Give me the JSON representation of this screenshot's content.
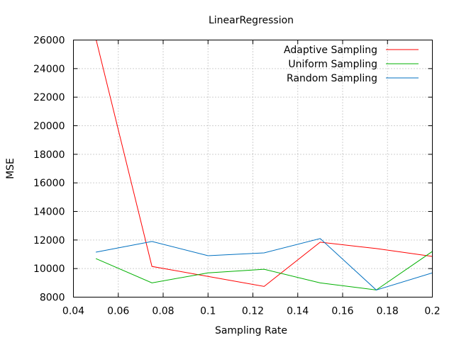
{
  "chart_data": {
    "type": "line",
    "title": "LinearRegression",
    "xlabel": "Sampling Rate",
    "ylabel": "MSE",
    "xlim": [
      0.04,
      0.2
    ],
    "ylim": [
      8000,
      26000
    ],
    "xticks": [
      0.04,
      0.06,
      0.08,
      0.1,
      0.12,
      0.14,
      0.16,
      0.18,
      0.2
    ],
    "xtick_labels": [
      "0.04",
      "0.06",
      "0.08",
      "0.1",
      "0.12",
      "0.14",
      "0.16",
      "0.18",
      "0.2"
    ],
    "yticks": [
      8000,
      10000,
      12000,
      14000,
      16000,
      18000,
      20000,
      22000,
      24000,
      26000
    ],
    "ytick_labels": [
      "8000",
      "10000",
      "12000",
      "14000",
      "16000",
      "18000",
      "20000",
      "22000",
      "24000",
      "26000"
    ],
    "grid": true,
    "legend": "top-right",
    "x": [
      0.05,
      0.075,
      0.1,
      0.125,
      0.15,
      0.175,
      0.2
    ],
    "series": [
      {
        "name": "Adaptive Sampling",
        "color": "#ff0000",
        "values": [
          26100,
          10150,
          9450,
          8750,
          11850,
          11400,
          10850
        ]
      },
      {
        "name": "Uniform Sampling",
        "color": "#00b000",
        "values": [
          10700,
          9000,
          9700,
          9950,
          9000,
          8500,
          11200
        ]
      },
      {
        "name": "Random Sampling",
        "color": "#0070c0",
        "values": [
          11150,
          11900,
          10900,
          11100,
          12100,
          8500,
          9700
        ]
      }
    ]
  }
}
